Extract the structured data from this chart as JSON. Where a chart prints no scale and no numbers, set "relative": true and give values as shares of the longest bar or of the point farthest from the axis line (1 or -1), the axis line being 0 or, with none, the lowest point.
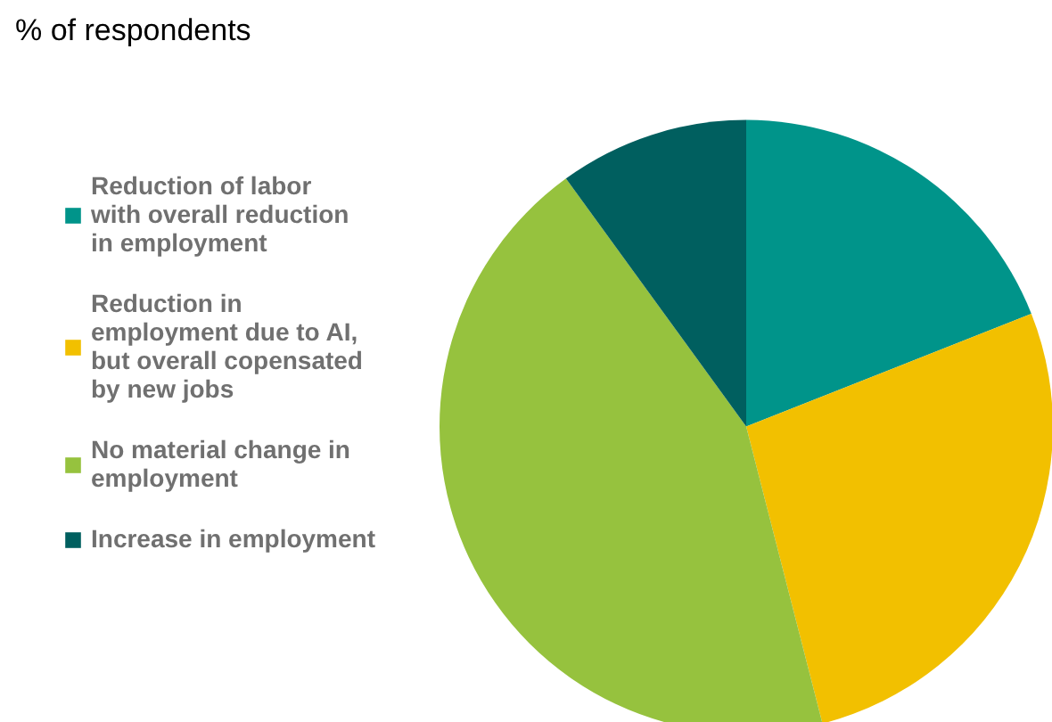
{
  "chart_data": {
    "type": "pie",
    "title": "% of respondents",
    "categories": [
      "Reduction of labor with overall reduction in employment",
      "Reduction in employment due to AI, but overall copensated by new jobs",
      "No material change in employment",
      "Increase in employment"
    ],
    "values": [
      19,
      27,
      44,
      10
    ],
    "colors": [
      "#00948a",
      "#f2c000",
      "#96c23e",
      "#005f5f"
    ],
    "legend": "left",
    "relative": true
  }
}
